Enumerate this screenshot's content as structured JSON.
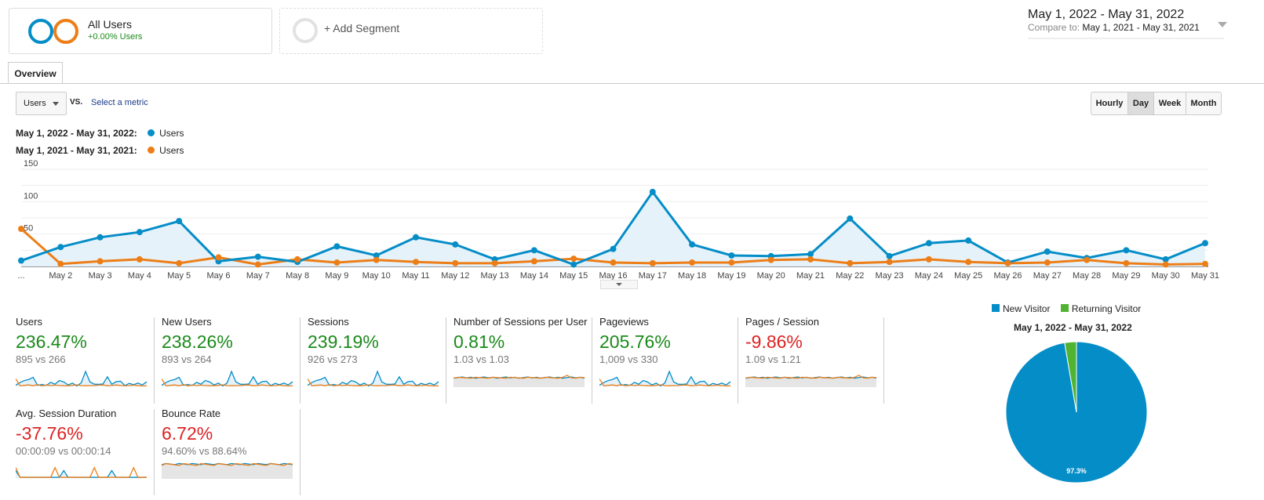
{
  "segment": {
    "name": "All Users",
    "change": "+0.00% Users",
    "add_label": "+ Add Segment"
  },
  "date": {
    "range": "May 1, 2022 - May 31, 2022",
    "compare_label": "Compare to:",
    "compare_range": "May 1, 2021 - May 31, 2021"
  },
  "tabs": [
    {
      "label": "Overview"
    }
  ],
  "controls": {
    "metric": "Users",
    "vs": "VS.",
    "select_metric": "Select a metric",
    "granularity": [
      "Hourly",
      "Day",
      "Week",
      "Month"
    ],
    "active": "Day"
  },
  "legend": [
    {
      "range": "May 1, 2022 - May 31, 2022:",
      "metric": "Users",
      "color": "#058dc7"
    },
    {
      "range": "May 1, 2021 - May 31, 2021:",
      "metric": "Users",
      "color": "#ed7e17"
    }
  ],
  "chart_data": {
    "type": "line",
    "ylim": [
      0,
      150
    ],
    "yticks": [
      50,
      100,
      150
    ],
    "categories": [
      "...",
      "May 2",
      "May 3",
      "May 4",
      "May 5",
      "May 6",
      "May 7",
      "May 8",
      "May 9",
      "May 10",
      "May 11",
      "May 12",
      "May 13",
      "May 14",
      "May 15",
      "May 16",
      "May 17",
      "May 18",
      "May 19",
      "May 20",
      "May 21",
      "May 22",
      "May 23",
      "May 24",
      "May 25",
      "May 26",
      "May 27",
      "May 28",
      "May 29",
      "May 30",
      "May 31"
    ],
    "series": [
      {
        "name": "May 1, 2022 - May 31, 2022 Users",
        "color": "#058dc7",
        "values": [
          9,
          30,
          45,
          53,
          70,
          8,
          15,
          7,
          31,
          17,
          45,
          34,
          11,
          25,
          3,
          27,
          115,
          34,
          17,
          16,
          19,
          74,
          16,
          36,
          40,
          6,
          23,
          13,
          25,
          11,
          36
        ]
      },
      {
        "name": "May 1, 2021 - May 31, 2021 Users",
        "color": "#ed7e17",
        "values": [
          58,
          4,
          8,
          11,
          5,
          14,
          3,
          11,
          6,
          10,
          7,
          5,
          5,
          8,
          12,
          6,
          5,
          6,
          6,
          10,
          11,
          5,
          7,
          11,
          7,
          5,
          6,
          10,
          5,
          3,
          4
        ]
      }
    ]
  },
  "metrics": [
    {
      "title": "Users",
      "value": "236.47%",
      "compare": "895 vs 266",
      "trend": "pos",
      "spark": "users"
    },
    {
      "title": "New Users",
      "value": "238.26%",
      "compare": "893 vs 264",
      "trend": "pos",
      "spark": "users"
    },
    {
      "title": "Sessions",
      "value": "239.19%",
      "compare": "926 vs 273",
      "trend": "pos",
      "spark": "users"
    },
    {
      "title": "Number of Sessions per User",
      "value": "0.81%",
      "compare": "1.03 vs 1.03",
      "trend": "pos",
      "spark": "flat"
    },
    {
      "title": "Pageviews",
      "value": "205.76%",
      "compare": "1,009 vs 330",
      "trend": "pos",
      "spark": "users"
    },
    {
      "title": "Pages / Session",
      "value": "-9.86%",
      "compare": "1.09 vs 1.21",
      "trend": "neg",
      "spark": "flat"
    },
    {
      "title": "Avg. Session Duration",
      "value": "-37.76%",
      "compare": "00:00:09 vs 00:00:14",
      "trend": "neg",
      "spark": "noisy"
    },
    {
      "title": "Bounce Rate",
      "value": "6.72%",
      "compare": "94.60% vs 88.64%",
      "trend": "neg",
      "spark": "high"
    }
  ],
  "pie": {
    "legend": [
      {
        "label": "New Visitor",
        "color": "#058dc7"
      },
      {
        "label": "Returning Visitor",
        "color": "#50b432"
      }
    ],
    "title": "May 1, 2022 - May 31, 2022",
    "slices": [
      {
        "label": "New Visitor",
        "value": 97.3,
        "text": "97.3%"
      },
      {
        "label": "Returning Visitor",
        "value": 2.7
      }
    ]
  }
}
